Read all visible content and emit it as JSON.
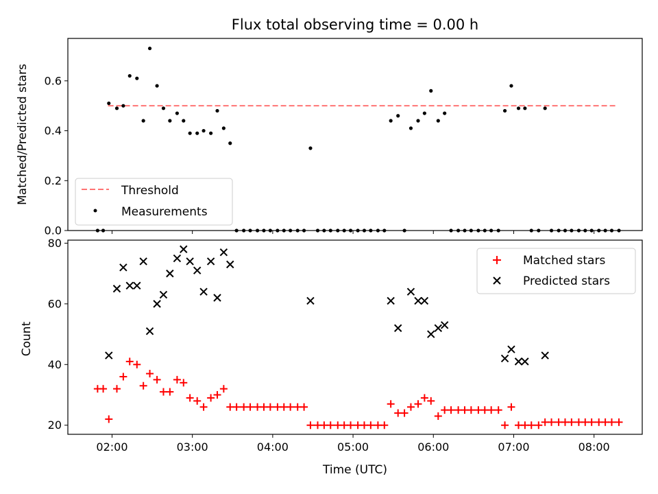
{
  "chart_data": {
    "title": "Flux total observing time = 0.00 h",
    "xlabel": "Time (UTC)",
    "x_ticks": [
      2,
      3,
      4,
      5,
      6,
      7,
      8
    ],
    "x_tick_labels": [
      "02:00",
      "03:00",
      "04:00",
      "05:00",
      "06:00",
      "07:00",
      "08:00"
    ],
    "xlim": [
      1.45,
      8.6
    ],
    "panels": [
      {
        "type": "scatter",
        "ylabel": "Matched/Predicted stars",
        "ylim": [
          0,
          0.77
        ],
        "y_ticks": [
          0.0,
          0.2,
          0.4,
          0.6
        ],
        "y_tick_labels": [
          "0.0",
          "0.2",
          "0.4",
          "0.6"
        ],
        "legend_position": "lower-left",
        "threshold": {
          "name": "Threshold",
          "value": 0.5,
          "x_range": [
            1.95,
            8.28
          ],
          "color": "#ff7373"
        },
        "measurements": {
          "name": "Measurements",
          "color": "#000000",
          "x": [
            1.82,
            1.89,
            1.96,
            2.06,
            2.14,
            2.22,
            2.31,
            2.39,
            2.47,
            2.56,
            2.64,
            2.72,
            2.81,
            2.89,
            2.97,
            3.06,
            3.14,
            3.23,
            3.31,
            3.39,
            3.47,
            3.55,
            3.64,
            3.72,
            3.81,
            3.89,
            3.97,
            4.06,
            4.14,
            4.22,
            4.31,
            4.39,
            4.47,
            4.56,
            4.64,
            4.72,
            4.81,
            4.89,
            4.97,
            5.06,
            5.14,
            5.22,
            5.31,
            5.39,
            5.47,
            5.56,
            5.64,
            5.72,
            5.81,
            5.89,
            5.97,
            6.06,
            6.14,
            6.22,
            6.31,
            6.39,
            6.47,
            6.56,
            6.64,
            6.72,
            6.81,
            6.89,
            6.97,
            7.06,
            7.14,
            7.22,
            7.31,
            7.39,
            7.47,
            7.56,
            7.64,
            7.72,
            7.81,
            7.89,
            7.97,
            8.06,
            8.14,
            8.22,
            8.31
          ],
          "y": [
            0.0,
            0.0,
            0.51,
            0.49,
            0.5,
            0.62,
            0.61,
            0.44,
            0.73,
            0.58,
            0.49,
            0.44,
            0.47,
            0.44,
            0.39,
            0.39,
            0.4,
            0.39,
            0.48,
            0.41,
            0.35,
            0.0,
            0.0,
            0.0,
            0.0,
            0.0,
            0.0,
            0.0,
            0.0,
            0.0,
            0.0,
            0.0,
            0.33,
            0.0,
            0.0,
            0.0,
            0.0,
            0.0,
            0.0,
            0.0,
            0.0,
            0.0,
            0.0,
            0.0,
            0.44,
            0.46,
            0.0,
            0.41,
            0.44,
            0.47,
            0.56,
            0.44,
            0.47,
            0.0,
            0.0,
            0.0,
            0.0,
            0.0,
            0.0,
            0.0,
            0.0,
            0.48,
            0.58,
            0.49,
            0.49,
            0.0,
            0.0,
            0.49,
            0.0,
            0.0,
            0.0,
            0.0,
            0.0,
            0.0,
            0.0,
            0.0,
            0.0,
            0.0,
            0.0
          ]
        }
      },
      {
        "type": "scatter",
        "ylabel": "Count",
        "ylim": [
          17,
          81
        ],
        "y_ticks": [
          20,
          40,
          60,
          80
        ],
        "y_tick_labels": [
          "20",
          "40",
          "60",
          "80"
        ],
        "legend_position": "top-right",
        "series": [
          {
            "name": "Matched stars",
            "marker": "+",
            "color": "#ff0000",
            "x": [
              1.82,
              1.89,
              1.96,
              2.06,
              2.14,
              2.22,
              2.31,
              2.39,
              2.47,
              2.56,
              2.64,
              2.72,
              2.81,
              2.89,
              2.97,
              3.06,
              3.14,
              3.23,
              3.31,
              3.39,
              3.47,
              3.55,
              3.64,
              3.72,
              3.81,
              3.89,
              3.97,
              4.06,
              4.14,
              4.22,
              4.31,
              4.39,
              4.47,
              4.56,
              4.64,
              4.72,
              4.81,
              4.89,
              4.97,
              5.06,
              5.14,
              5.22,
              5.31,
              5.39,
              5.47,
              5.56,
              5.64,
              5.72,
              5.81,
              5.89,
              5.97,
              6.06,
              6.14,
              6.22,
              6.31,
              6.39,
              6.47,
              6.56,
              6.64,
              6.72,
              6.81,
              6.89,
              6.97,
              7.06,
              7.14,
              7.22,
              7.31,
              7.39,
              7.47,
              7.56,
              7.64,
              7.72,
              7.81,
              7.89,
              7.97,
              8.06,
              8.14,
              8.22,
              8.31
            ],
            "y": [
              32,
              32,
              22,
              32,
              36,
              41,
              40,
              33,
              37,
              35,
              31,
              31,
              35,
              34,
              29,
              28,
              26,
              29,
              30,
              32,
              26,
              26,
              26,
              26,
              26,
              26,
              26,
              26,
              26,
              26,
              26,
              26,
              20,
              20,
              20,
              20,
              20,
              20,
              20,
              20,
              20,
              20,
              20,
              20,
              27,
              24,
              24,
              26,
              27,
              29,
              28,
              23,
              25,
              25,
              25,
              25,
              25,
              25,
              25,
              25,
              25,
              20,
              26,
              20,
              20,
              20,
              20,
              21,
              21,
              21,
              21,
              21,
              21,
              21,
              21,
              21,
              21,
              21,
              21
            ]
          },
          {
            "name": "Predicted stars",
            "marker": "x",
            "color": "#000000",
            "x": [
              1.96,
              2.06,
              2.14,
              2.22,
              2.31,
              2.39,
              2.47,
              2.56,
              2.64,
              2.72,
              2.81,
              2.89,
              2.97,
              3.06,
              3.14,
              3.23,
              3.31,
              3.39,
              3.47,
              4.47,
              5.47,
              5.56,
              5.72,
              5.81,
              5.89,
              5.97,
              6.06,
              6.14,
              6.89,
              6.97,
              7.06,
              7.14,
              7.39
            ],
            "y": [
              43,
              65,
              72,
              66,
              66,
              74,
              51,
              60,
              63,
              70,
              75,
              78,
              74,
              71,
              64,
              74,
              62,
              77,
              73,
              61,
              61,
              52,
              64,
              61,
              61,
              50,
              52,
              53,
              42,
              45,
              41,
              41,
              43
            ]
          }
        ]
      }
    ]
  }
}
